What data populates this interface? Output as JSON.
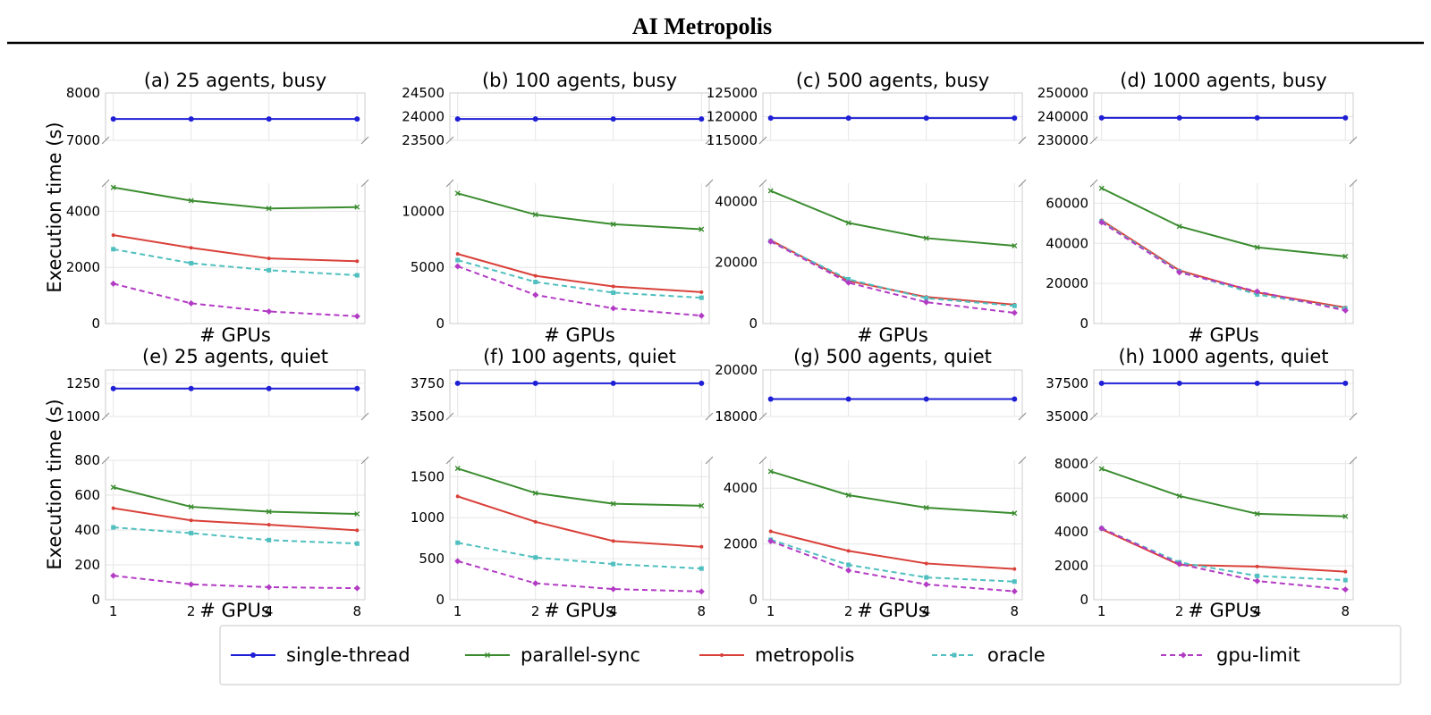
{
  "title": "AI Metropolis",
  "chart_data": {
    "type": "line",
    "x": [
      1,
      2,
      4,
      8
    ],
    "xlabel": "# GPUs",
    "ylabel": "Execution time (s)",
    "series_styles": [
      {
        "name": "single-thread",
        "color": "#1f1fd6",
        "dash": "",
        "marker": "circle"
      },
      {
        "name": "parallel-sync",
        "color": "#3a8c2f",
        "dash": "",
        "marker": "x"
      },
      {
        "name": "metropolis",
        "color": "#d9413a",
        "dash": "",
        "marker": "point"
      },
      {
        "name": "oracle",
        "color": "#4fbfbf",
        "dash": "6,4",
        "marker": "square"
      },
      {
        "name": "gpu-limit",
        "color": "#b23bc4",
        "dash": "6,4",
        "marker": "diamond"
      }
    ],
    "legend": [
      "single-thread",
      "parallel-sync",
      "metropolis",
      "oracle",
      "gpu-limit"
    ],
    "panels": [
      {
        "title": "(a) 25 agents, busy",
        "top_ylim": [
          7000,
          8000
        ],
        "top_ticks": [
          "7000",
          "8000"
        ],
        "bottom_ylim": [
          0,
          5000
        ],
        "bottom_ticks": [
          "0",
          "2000",
          "4000"
        ],
        "single_thread": [
          7450,
          7450,
          7450,
          7450
        ],
        "series": [
          {
            "name": "parallel-sync",
            "values": [
              4850,
              4380,
              4100,
              4150
            ]
          },
          {
            "name": "metropolis",
            "values": [
              3150,
              2700,
              2320,
              2220
            ]
          },
          {
            "name": "oracle",
            "values": [
              2650,
              2150,
              1900,
              1720
            ]
          },
          {
            "name": "gpu-limit",
            "values": [
              1420,
              720,
              430,
              260
            ]
          }
        ]
      },
      {
        "title": "(b) 100 agents, busy",
        "top_ylim": [
          23500,
          24500
        ],
        "top_ticks": [
          "23500",
          "24000",
          "24500"
        ],
        "bottom_ylim": [
          0,
          12500
        ],
        "bottom_ticks": [
          "0",
          "5000",
          "10000"
        ],
        "single_thread": [
          23950,
          23950,
          23950,
          23950
        ],
        "series": [
          {
            "name": "parallel-sync",
            "values": [
              11600,
              9700,
              8850,
              8400
            ]
          },
          {
            "name": "metropolis",
            "values": [
              6200,
              4250,
              3300,
              2800
            ]
          },
          {
            "name": "oracle",
            "values": [
              5650,
              3700,
              2750,
              2300
            ]
          },
          {
            "name": "gpu-limit",
            "values": [
              5100,
              2550,
              1350,
              700
            ]
          }
        ]
      },
      {
        "title": "(c) 500 agents, busy",
        "top_ylim": [
          115000,
          125000
        ],
        "top_ticks": [
          "115000",
          "120000",
          "125000"
        ],
        "bottom_ylim": [
          0,
          46000
        ],
        "bottom_ticks": [
          "0",
          "20000",
          "40000"
        ],
        "single_thread": [
          119700,
          119700,
          119700,
          119700
        ],
        "series": [
          {
            "name": "parallel-sync",
            "values": [
              43500,
              33000,
              28000,
              25500
            ]
          },
          {
            "name": "metropolis",
            "values": [
              27300,
              14000,
              8700,
              6200
            ]
          },
          {
            "name": "oracle",
            "values": [
              27000,
              14500,
              8300,
              5800
            ]
          },
          {
            "name": "gpu-limit",
            "values": [
              26900,
              13400,
              7000,
              3500
            ]
          }
        ]
      },
      {
        "title": "(d) 1000 agents, busy",
        "top_ylim": [
          230000,
          250000
        ],
        "top_ticks": [
          "230000",
          "240000",
          "250000"
        ],
        "bottom_ylim": [
          0,
          70000
        ],
        "bottom_ticks": [
          "0",
          "20000",
          "40000",
          "60000"
        ],
        "single_thread": [
          239500,
          239500,
          239500,
          239500
        ],
        "series": [
          {
            "name": "parallel-sync",
            "values": [
              67500,
              48500,
              38000,
              33500
            ]
          },
          {
            "name": "metropolis",
            "values": [
              51500,
              26500,
              15500,
              8000
            ]
          },
          {
            "name": "oracle",
            "values": [
              51000,
              26000,
              14500,
              7500
            ]
          },
          {
            "name": "gpu-limit",
            "values": [
              50500,
              25500,
              16000,
              6500
            ]
          }
        ]
      },
      {
        "title": "(e) 25 agents, quiet",
        "top_ylim": [
          1000,
          1350
        ],
        "top_ticks": [
          "1000",
          "1250"
        ],
        "bottom_ylim": [
          0,
          800
        ],
        "bottom_ticks": [
          "0",
          "200",
          "400",
          "600",
          "800"
        ],
        "single_thread": [
          1210,
          1210,
          1210,
          1210
        ],
        "series": [
          {
            "name": "parallel-sync",
            "values": [
              645,
              533,
              505,
              492
            ]
          },
          {
            "name": "metropolis",
            "values": [
              525,
              455,
              430,
              398
            ]
          },
          {
            "name": "oracle",
            "values": [
              415,
              382,
              342,
              322
            ]
          },
          {
            "name": "gpu-limit",
            "values": [
              138,
              88,
              72,
              66
            ]
          }
        ]
      },
      {
        "title": "(f) 100 agents, quiet",
        "top_ylim": [
          3500,
          3850
        ],
        "top_ticks": [
          "3500",
          "3750"
        ],
        "bottom_ylim": [
          0,
          1700
        ],
        "bottom_ticks": [
          "0",
          "500",
          "1000",
          "1500"
        ],
        "single_thread": [
          3750,
          3750,
          3750,
          3750
        ],
        "series": [
          {
            "name": "parallel-sync",
            "values": [
              1600,
              1300,
              1170,
              1145
            ]
          },
          {
            "name": "metropolis",
            "values": [
              1260,
              950,
              715,
              645
            ]
          },
          {
            "name": "oracle",
            "values": [
              695,
              515,
              435,
              380
            ]
          },
          {
            "name": "gpu-limit",
            "values": [
              470,
              200,
              130,
              100
            ]
          }
        ]
      },
      {
        "title": "(g) 500 agents, quiet",
        "top_ylim": [
          18000,
          20000
        ],
        "top_ticks": [
          "18000",
          "20000"
        ],
        "bottom_ylim": [
          0,
          5000
        ],
        "bottom_ticks": [
          "0",
          "2000",
          "4000"
        ],
        "single_thread": [
          18750,
          18750,
          18750,
          18750
        ],
        "series": [
          {
            "name": "parallel-sync",
            "values": [
              4600,
              3750,
              3300,
              3100
            ]
          },
          {
            "name": "metropolis",
            "values": [
              2450,
              1750,
              1300,
              1100
            ]
          },
          {
            "name": "oracle",
            "values": [
              2150,
              1250,
              800,
              650
            ]
          },
          {
            "name": "gpu-limit",
            "values": [
              2100,
              1050,
              550,
              300
            ]
          }
        ]
      },
      {
        "title": "(h) 1000 agents, quiet",
        "top_ylim": [
          35000,
          38500
        ],
        "top_ticks": [
          "35000",
          "37500"
        ],
        "bottom_ylim": [
          0,
          8200
        ],
        "bottom_ticks": [
          "0",
          "2000",
          "4000",
          "6000",
          "8000"
        ],
        "single_thread": [
          37500,
          37500,
          37500,
          37500
        ],
        "series": [
          {
            "name": "parallel-sync",
            "values": [
              7700,
              6100,
              5050,
              4900
            ]
          },
          {
            "name": "metropolis",
            "values": [
              4150,
              2050,
              1950,
              1650
            ]
          },
          {
            "name": "oracle",
            "values": [
              4200,
              2200,
              1400,
              1150
            ]
          },
          {
            "name": "gpu-limit",
            "values": [
              4200,
              2100,
              1100,
              600
            ]
          }
        ]
      }
    ]
  }
}
